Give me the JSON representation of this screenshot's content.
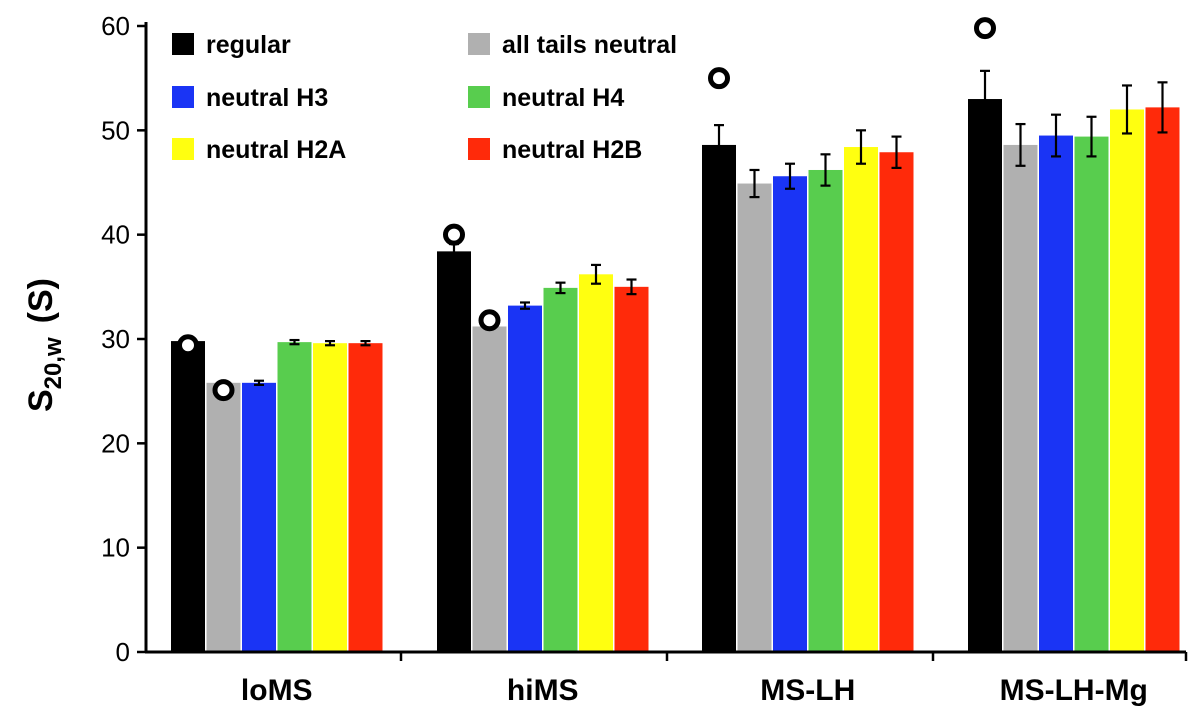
{
  "chart_data": {
    "type": "bar",
    "ylabel": {
      "main": "S",
      "subscript": "20,w",
      "unit": "(S)"
    },
    "xlabel": "",
    "ylim": [
      0,
      60
    ],
    "yticks": [
      "0",
      "10",
      "20",
      "30",
      "40",
      "50",
      "60"
    ],
    "grid": false,
    "legend_position": "top-left",
    "categories": [
      "loMS",
      "hiMS",
      "MS-LH",
      "MS-LH-Mg"
    ],
    "series": [
      {
        "name": "regular",
        "color": "#000000",
        "values": [
          29.8,
          38.4,
          48.6,
          53.0
        ],
        "errors": [
          0.0,
          0.7,
          1.9,
          2.7
        ]
      },
      {
        "name": "all tails neutral",
        "color": "#b0b0b0",
        "values": [
          25.8,
          31.2,
          44.9,
          48.6
        ],
        "errors": [
          0.0,
          0.0,
          1.3,
          2.0
        ]
      },
      {
        "name": "neutral H3",
        "color": "#1a34f5",
        "values": [
          25.8,
          33.2,
          45.6,
          49.5
        ],
        "errors": [
          0.2,
          0.3,
          1.2,
          2.0
        ]
      },
      {
        "name": "neutral H4",
        "color": "#58cd4e",
        "values": [
          29.7,
          34.9,
          46.2,
          49.4
        ],
        "errors": [
          0.2,
          0.5,
          1.5,
          1.9
        ]
      },
      {
        "name": "neutral H2A",
        "color": "#ffff10",
        "values": [
          29.6,
          36.2,
          48.4,
          52.0
        ],
        "errors": [
          0.2,
          0.9,
          1.6,
          2.3
        ]
      },
      {
        "name": "neutral H2B",
        "color": "#ff2a0a",
        "values": [
          29.6,
          35.0,
          47.9,
          52.2
        ],
        "errors": [
          0.2,
          0.7,
          1.5,
          2.4
        ]
      }
    ],
    "markers": [
      {
        "category": "loMS",
        "series": "regular",
        "y": 29.4
      },
      {
        "category": "loMS",
        "series": "all tails neutral",
        "y": 25.1
      },
      {
        "category": "hiMS",
        "series": "regular",
        "y": 40.0
      },
      {
        "category": "hiMS",
        "series": "all tails neutral",
        "y": 31.8
      },
      {
        "category": "MS-LH",
        "series": "regular",
        "y": 55.0
      },
      {
        "category": "MS-LH-Mg",
        "series": "regular",
        "y": 59.8
      }
    ]
  }
}
